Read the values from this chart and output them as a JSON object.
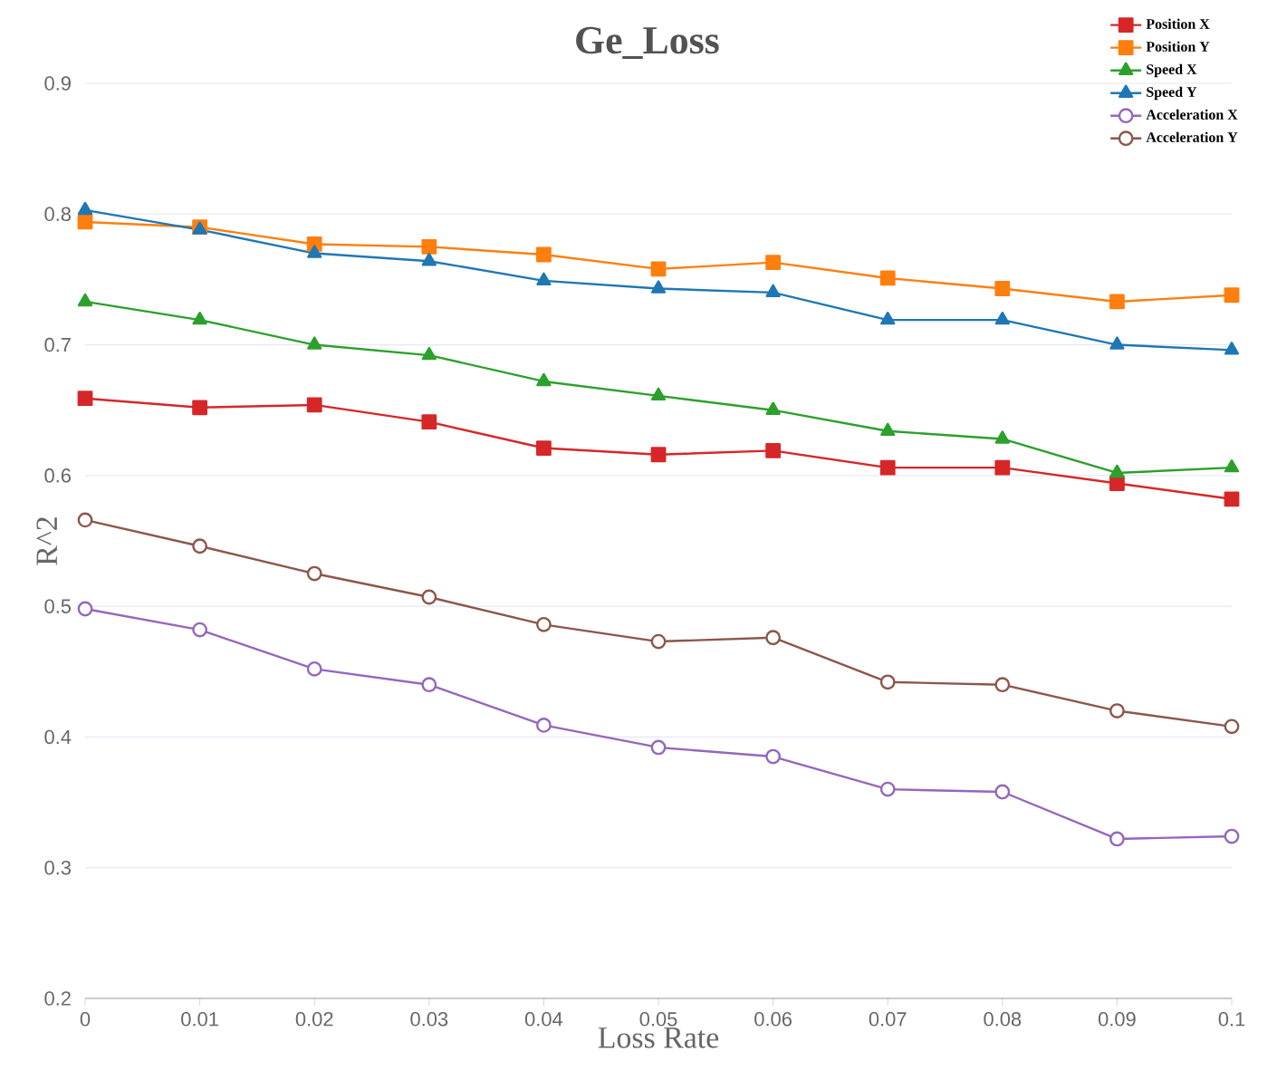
{
  "chart_data": {
    "type": "line",
    "title": "Ge_Loss",
    "xlabel": "Loss Rate",
    "ylabel": "R^2",
    "x": [
      0,
      0.01,
      0.02,
      0.03,
      0.04,
      0.05,
      0.06,
      0.07,
      0.08,
      0.09,
      0.1
    ],
    "xlim": [
      0,
      0.1
    ],
    "xticks": [
      0,
      0.01,
      0.02,
      0.03,
      0.04,
      0.05,
      0.06,
      0.07,
      0.08,
      0.09,
      0.1
    ],
    "ylim": [
      0.2,
      0.9
    ],
    "yticks": [
      0.2,
      0.3,
      0.4,
      0.5,
      0.6,
      0.7,
      0.8,
      0.9
    ],
    "grid": "y",
    "legend": "top right",
    "line_style": "solid",
    "series": [
      {
        "name": "Position X",
        "color": "#d62728",
        "marker": "square",
        "values": [
          0.659,
          0.652,
          0.654,
          0.641,
          0.621,
          0.616,
          0.619,
          0.606,
          0.606,
          0.594,
          0.582
        ]
      },
      {
        "name": "Position Y",
        "color": "#ff7f0e",
        "marker": "square",
        "values": [
          0.794,
          0.79,
          0.777,
          0.775,
          0.769,
          0.758,
          0.763,
          0.751,
          0.743,
          0.733,
          0.738
        ]
      },
      {
        "name": "Speed X",
        "color": "#2ca02c",
        "marker": "triangle",
        "values": [
          0.733,
          0.719,
          0.7,
          0.692,
          0.672,
          0.661,
          0.65,
          0.634,
          0.628,
          0.602,
          0.606
        ]
      },
      {
        "name": "Speed Y",
        "color": "#1f77b4",
        "marker": "triangle",
        "values": [
          0.803,
          0.788,
          0.77,
          0.764,
          0.749,
          0.743,
          0.74,
          0.719,
          0.719,
          0.7,
          0.696
        ]
      },
      {
        "name": "Acceleration X",
        "color": "#9467bd",
        "marker": "circle",
        "values": [
          0.498,
          0.482,
          0.452,
          0.44,
          0.409,
          0.392,
          0.385,
          0.36,
          0.358,
          0.322,
          0.324
        ]
      },
      {
        "name": "Acceleration Y",
        "color": "#8c564b",
        "marker": "circle",
        "values": [
          0.566,
          0.546,
          0.525,
          0.507,
          0.486,
          0.473,
          0.476,
          0.442,
          0.44,
          0.42,
          0.408
        ]
      }
    ]
  }
}
